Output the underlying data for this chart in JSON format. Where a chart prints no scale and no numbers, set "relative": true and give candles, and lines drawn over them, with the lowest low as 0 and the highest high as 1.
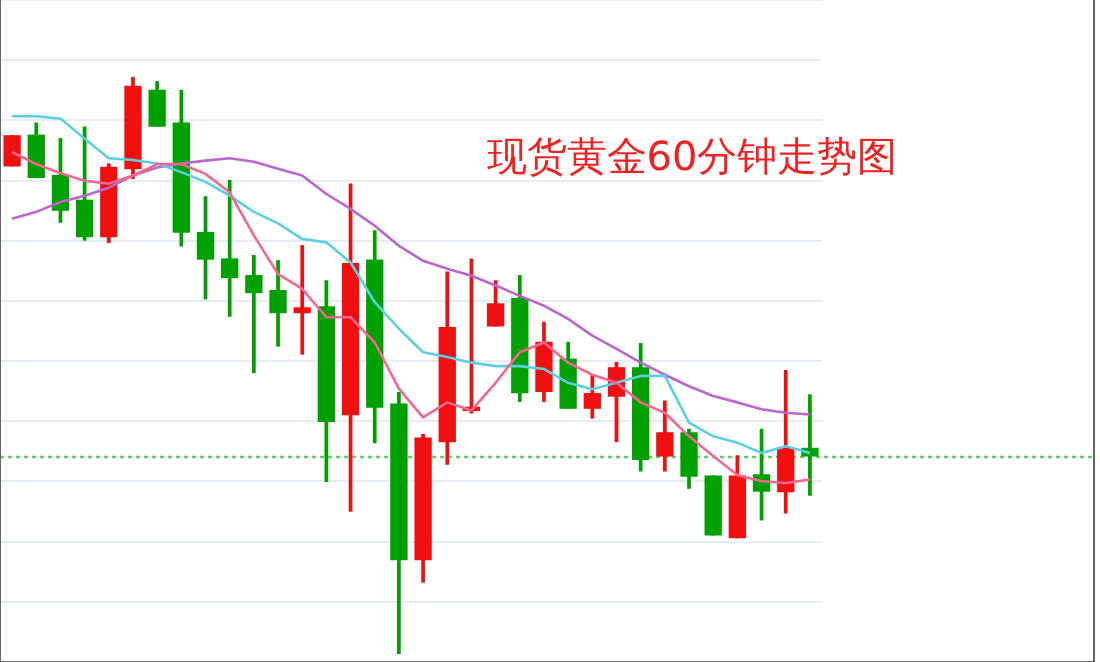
{
  "chart_data": {
    "type": "candlestick",
    "title": "现货黄金60分钟走势图",
    "relative": true,
    "grid": "y",
    "legend": false,
    "categories": [
      null,
      null,
      null,
      null,
      null,
      null,
      null,
      null,
      null,
      null,
      null,
      null,
      null,
      null,
      null,
      null,
      null,
      null,
      null,
      null,
      null,
      null,
      null,
      null,
      null,
      null,
      null,
      null,
      null,
      null,
      null,
      null,
      null,
      null
    ],
    "ohlc": [
      [
        0.847,
        0.899,
        0.847,
        0.899
      ],
      [
        0.9,
        0.921,
        0.827,
        0.827
      ],
      [
        0.83,
        0.894,
        0.749,
        0.77
      ],
      [
        0.787,
        0.914,
        0.718,
        0.724
      ],
      [
        0.724,
        0.85,
        0.714,
        0.844
      ],
      [
        0.842,
        1.0,
        0.825,
        0.985
      ],
      [
        0.978,
        0.993,
        0.916,
        0.916
      ],
      [
        0.921,
        0.978,
        0.708,
        0.732
      ],
      [
        0.731,
        0.793,
        0.616,
        0.685
      ],
      [
        0.685,
        0.821,
        0.586,
        0.653
      ],
      [
        0.656,
        0.691,
        0.488,
        0.627
      ],
      [
        0.63,
        0.682,
        0.534,
        0.592
      ],
      [
        0.592,
        0.708,
        0.52,
        0.6
      ],
      [
        0.602,
        0.647,
        0.299,
        0.403
      ],
      [
        0.415,
        0.815,
        0.247,
        0.677
      ],
      [
        0.683,
        0.734,
        0.366,
        0.428
      ],
      [
        0.433,
        0.453,
        0.0,
        0.163
      ],
      [
        0.163,
        0.38,
        0.124,
        0.374
      ],
      [
        0.368,
        0.662,
        0.329,
        0.566
      ],
      [
        0.422,
        0.685,
        0.418,
        0.426
      ],
      [
        0.569,
        0.647,
        0.569,
        0.607
      ],
      [
        0.616,
        0.656,
        0.438,
        0.453
      ],
      [
        0.455,
        0.575,
        0.438,
        0.54
      ],
      [
        0.511,
        0.54,
        0.426,
        0.426
      ],
      [
        0.426,
        0.484,
        0.409,
        0.451
      ],
      [
        0.447,
        0.505,
        0.368,
        0.496
      ],
      [
        0.496,
        0.538,
        0.317,
        0.337
      ],
      [
        0.343,
        0.438,
        0.317,
        0.383
      ],
      [
        0.383,
        0.389,
        0.287,
        0.308
      ],
      [
        0.308,
        0.308,
        0.206,
        0.206
      ],
      [
        0.201,
        0.343,
        0.201,
        0.308
      ],
      [
        0.31,
        0.389,
        0.232,
        0.282
      ],
      [
        0.281,
        0.491,
        0.244,
        0.356
      ],
      [
        0.356,
        0.449,
        0.275,
        0.343
      ]
    ],
    "colors": [
      "#f01010",
      "#00a000",
      "#00a000",
      "#00a000",
      "#f01010",
      "#f01010",
      "#00a000",
      "#00a000",
      "#00a000",
      "#00a000",
      "#00a000",
      "#00a000",
      "#f01010",
      "#00a000",
      "#f01010",
      "#00a000",
      "#00a000",
      "#f01010",
      "#f01010",
      "#f01010",
      "#f01010",
      "#00a000",
      "#f01010",
      "#00a000",
      "#f01010",
      "#f01010",
      "#00a000",
      "#f01010",
      "#00a000",
      "#00a000",
      "#f01010",
      "#00a000",
      "#f01010",
      "#00a000"
    ],
    "series": [
      {
        "type": "line",
        "color": "#f06892",
        "values": [
          0.871,
          0.85,
          0.834,
          0.821,
          0.816,
          0.83,
          0.85,
          0.85,
          0.833,
          0.801,
          0.726,
          0.659,
          0.633,
          0.584,
          0.584,
          0.54,
          0.46,
          0.41,
          0.436,
          0.422,
          0.47,
          0.523,
          0.54,
          0.505,
          0.484,
          0.47,
          0.436,
          0.418,
          0.377,
          0.343,
          0.31,
          0.299,
          0.296,
          0.302
        ]
      },
      {
        "type": "line",
        "color": "#5ccfe0",
        "values": [
          0.933,
          0.933,
          0.929,
          0.894,
          0.86,
          0.857,
          0.851,
          0.836,
          0.819,
          0.795,
          0.767,
          0.747,
          0.72,
          0.714,
          0.679,
          0.61,
          0.564,
          0.523,
          0.515,
          0.505,
          0.499,
          0.499,
          0.494,
          0.47,
          0.459,
          0.47,
          0.482,
          0.482,
          0.401,
          0.377,
          0.366,
          0.348,
          0.36,
          0.348
        ]
      },
      {
        "type": "line",
        "color": "#bb66cc",
        "values": [
          0.755,
          0.767,
          0.784,
          0.795,
          0.809,
          0.83,
          0.844,
          0.851,
          0.856,
          0.86,
          0.854,
          0.842,
          0.83,
          0.798,
          0.772,
          0.743,
          0.708,
          0.682,
          0.668,
          0.656,
          0.639,
          0.621,
          0.604,
          0.581,
          0.552,
          0.529,
          0.505,
          0.484,
          0.464,
          0.447,
          0.436,
          0.424,
          0.418,
          0.415
        ]
      }
    ],
    "ref_lines": [
      {
        "axis": "y",
        "value": 0.341,
        "color": "#66cc66",
        "line_style": "dotted"
      }
    ]
  }
}
